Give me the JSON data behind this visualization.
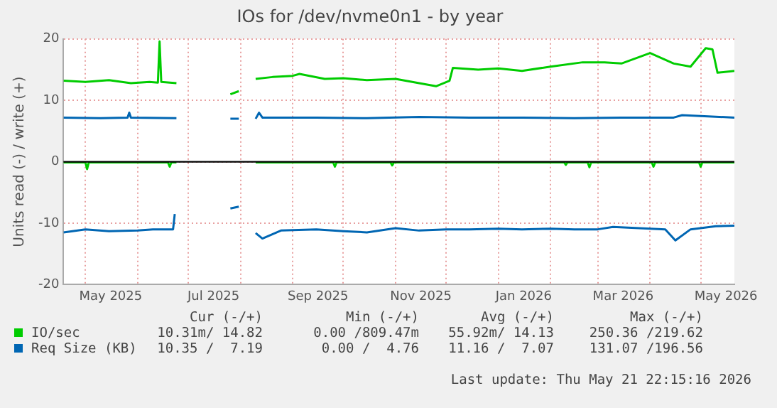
{
  "chart_data": {
    "type": "line",
    "title": "IOs for /dev/nvme0n1 - by year",
    "ylabel": "Units read (-) / write (+)",
    "xlim": [
      "2025-04-18",
      "2026-05-21"
    ],
    "xticks": [
      {
        "value": "2025-05-01",
        "label": null
      },
      {
        "value": "2025-05-16",
        "label": "May 2025"
      },
      {
        "value": "2025-06-01",
        "label": null
      },
      {
        "value": "2025-07-01",
        "label": null
      },
      {
        "value": "2025-07-16",
        "label": "Jul 2025"
      },
      {
        "value": "2025-08-01",
        "label": null
      },
      {
        "value": "2025-09-01",
        "label": null
      },
      {
        "value": "2025-09-16",
        "label": "Sep 2025"
      },
      {
        "value": "2025-10-01",
        "label": null
      },
      {
        "value": "2025-11-01",
        "label": null
      },
      {
        "value": "2025-11-16",
        "label": "Nov 2025"
      },
      {
        "value": "2025-12-01",
        "label": null
      },
      {
        "value": "2026-01-01",
        "label": null
      },
      {
        "value": "2026-01-16",
        "label": "Jan 2026"
      },
      {
        "value": "2026-02-01",
        "label": null
      },
      {
        "value": "2026-03-01",
        "label": null
      },
      {
        "value": "2026-03-16",
        "label": "Mar 2026"
      },
      {
        "value": "2026-04-01",
        "label": null
      },
      {
        "value": "2026-05-01",
        "label": null
      },
      {
        "value": "2026-05-16",
        "label": "May 2026"
      }
    ],
    "ylim": [
      -20,
      20
    ],
    "yticks": [
      -20,
      -10,
      0,
      10,
      20
    ],
    "grid": true,
    "legend": "bottom",
    "marker": "none",
    "line_style": "solid",
    "ref_lines": [
      {
        "axis": "y",
        "value": 0,
        "color": "#000000"
      }
    ],
    "series": [
      {
        "name": "IO/sec",
        "color": "#00cc00",
        "x": [
          "2025-04-18",
          "2025-05-01",
          "2025-05-15",
          "2025-05-28",
          "2025-06-08",
          "2025-06-13",
          "2025-06-14",
          "2025-06-15",
          "2025-06-24",
          "2025-07-10",
          "2025-07-26",
          "2025-07-31",
          "2025-08-05",
          "2025-08-10",
          "2025-08-20",
          "2025-09-01",
          "2025-09-05",
          "2025-09-20",
          "2025-10-01",
          "2025-10-15",
          "2025-11-01",
          "2025-11-15",
          "2025-11-25",
          "2025-12-03",
          "2025-12-05",
          "2025-12-20",
          "2026-01-01",
          "2026-01-15",
          "2026-02-01",
          "2026-02-20",
          "2026-03-05",
          "2026-03-15",
          "2026-04-01",
          "2026-04-15",
          "2026-04-25",
          "2026-05-04",
          "2026-05-08",
          "2026-05-11",
          "2026-05-21"
        ],
        "values": [
          13.2,
          13.0,
          13.3,
          12.8,
          13.0,
          12.9,
          19.6,
          13.0,
          12.8,
          null,
          11.0,
          11.5,
          null,
          13.5,
          13.8,
          14.0,
          14.3,
          13.5,
          13.6,
          13.3,
          13.5,
          12.8,
          12.3,
          13.2,
          15.3,
          15.0,
          15.2,
          14.8,
          15.5,
          16.2,
          16.2,
          16.0,
          17.7,
          16.0,
          15.5,
          18.5,
          18.3,
          14.5,
          14.8
        ]
      },
      {
        "color": "#00cc00",
        "x": [
          "2025-04-18",
          "2025-05-01",
          "2025-05-02",
          "2025-05-03",
          "2025-06-19",
          "2025-06-20",
          "2025-06-21",
          "2025-06-24",
          "2025-07-10",
          "2025-08-10",
          "2025-09-25",
          "2025-09-26",
          "2025-09-27",
          "2025-10-29",
          "2025-10-30",
          "2025-10-31",
          "2026-02-09",
          "2026-02-10",
          "2026-02-11",
          "2026-02-23",
          "2026-02-24",
          "2026-02-25",
          "2026-04-02",
          "2026-04-03",
          "2026-04-04",
          "2026-04-30",
          "2026-05-01",
          "2026-05-02",
          "2026-05-21"
        ],
        "values": [
          -0.1,
          -0.1,
          -1.2,
          -0.1,
          -0.1,
          -0.8,
          -0.1,
          -0.1,
          null,
          -0.1,
          -0.1,
          -0.8,
          -0.1,
          -0.1,
          -0.6,
          -0.1,
          -0.1,
          -0.5,
          -0.1,
          -0.1,
          -0.9,
          -0.1,
          -0.1,
          -0.8,
          -0.1,
          -0.1,
          -0.8,
          -0.1,
          -0.1
        ]
      },
      {
        "name": "Req Size (KB)",
        "color": "#0066b3",
        "x": [
          "2025-04-18",
          "2025-05-10",
          "2025-05-26",
          "2025-05-27",
          "2025-05-28",
          "2025-06-24",
          "2025-07-10",
          "2025-07-26",
          "2025-07-31",
          "2025-08-05",
          "2025-08-10",
          "2025-08-12",
          "2025-08-14",
          "2025-09-15",
          "2025-10-15",
          "2025-11-15",
          "2025-12-15",
          "2026-01-15",
          "2026-02-15",
          "2026-03-15",
          "2026-04-15",
          "2026-04-20",
          "2026-05-21"
        ],
        "values": [
          7.2,
          7.1,
          7.2,
          8.0,
          7.2,
          7.1,
          null,
          7.0,
          7.0,
          null,
          7.0,
          8.0,
          7.2,
          7.2,
          7.1,
          7.3,
          7.2,
          7.2,
          7.1,
          7.2,
          7.2,
          7.6,
          7.2
        ]
      },
      {
        "color": "#0066b3",
        "x": [
          "2025-04-18",
          "2025-05-01",
          "2025-05-15",
          "2025-06-01",
          "2025-06-10",
          "2025-06-22",
          "2025-06-23",
          "2025-07-10",
          "2025-07-26",
          "2025-07-31",
          "2025-08-05",
          "2025-08-10",
          "2025-08-14",
          "2025-08-25",
          "2025-09-15",
          "2025-10-01",
          "2025-10-15",
          "2025-11-01",
          "2025-11-15",
          "2025-12-01",
          "2025-12-15",
          "2026-01-01",
          "2026-01-15",
          "2026-02-01",
          "2026-02-15",
          "2026-03-01",
          "2026-03-10",
          "2026-04-10",
          "2026-04-16",
          "2026-04-25",
          "2026-05-10",
          "2026-05-21"
        ],
        "values": [
          -11.5,
          -11.0,
          -11.3,
          -11.2,
          -11.0,
          -11.0,
          -8.5,
          null,
          -7.6,
          -7.3,
          null,
          -11.6,
          -12.5,
          -11.2,
          -11.0,
          -11.3,
          -11.5,
          -10.8,
          -11.2,
          -11.0,
          -11.0,
          -10.9,
          -11.0,
          -10.9,
          -11.0,
          -11.0,
          -10.6,
          -11.0,
          -12.8,
          -11.0,
          -10.5,
          -10.4
        ]
      }
    ],
    "annotations": [
      "Cur (-/+)",
      "Min (-/+)",
      "Avg (-/+)",
      "Max (-/+)",
      "10.31m/ 14.82",
      "0.00 /809.47m",
      "55.92m/ 14.13",
      "250.36 /219.62",
      "10.35 /  7.19",
      "0.00 /  4.76",
      "11.16 /  7.07",
      "131.07 /196.56",
      "Last update: Thu May 21 22:15:16 2026"
    ]
  }
}
